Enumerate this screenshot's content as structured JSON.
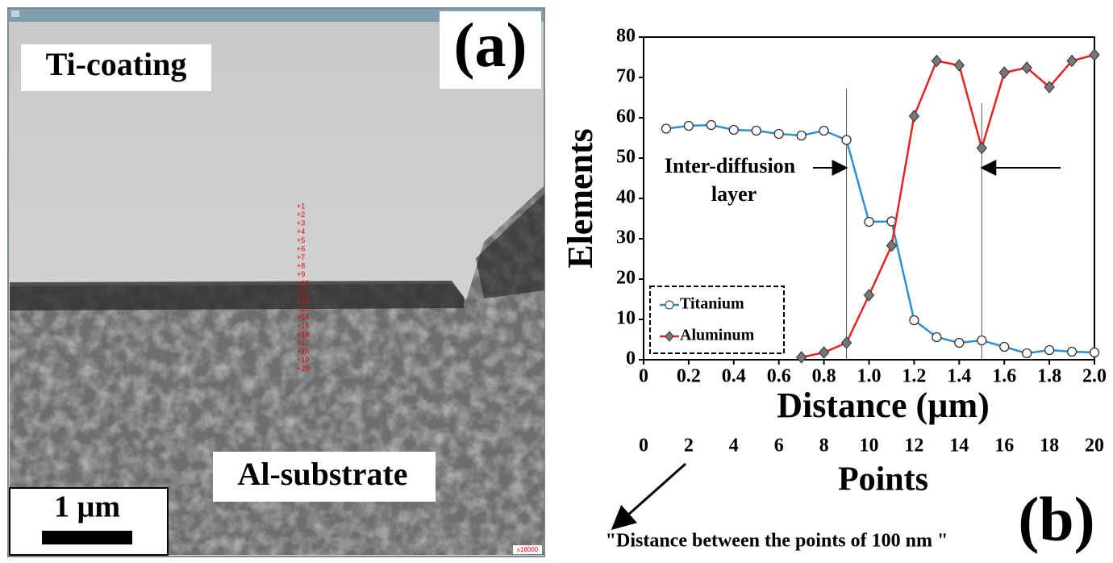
{
  "panel_a": {
    "label": "(a)",
    "top_text": "Ti-coating",
    "bottom_text": "Al-substrate",
    "scale_bar": "1 µm",
    "magnification": "x18000",
    "points": [
      "+1",
      "+2",
      "+3",
      "+4",
      "+5",
      "+6",
      "+7",
      "+8",
      "+9",
      "+10",
      "+11",
      "+12",
      "+13",
      "+14",
      "+15",
      "+16",
      "+17",
      "+18",
      "+19",
      "+20"
    ]
  },
  "chart_data": {
    "type": "line",
    "label": "(b)",
    "xlabel": "Distance (µm)",
    "ylabel": "Elements",
    "x": [
      0.1,
      0.2,
      0.3,
      0.4,
      0.5,
      0.6,
      0.7,
      0.8,
      0.9,
      1.0,
      1.1,
      1.2,
      1.3,
      1.4,
      1.5,
      1.6,
      1.7,
      1.8,
      1.9,
      2.0
    ],
    "series": [
      {
        "name": "Titanium",
        "color": "#2f8fcf",
        "marker": "circle",
        "values": [
          57.3,
          58,
          58.2,
          57,
          56.8,
          56,
          55.6,
          56.8,
          54.5,
          34.2,
          34.3,
          9.8,
          5.6,
          4.2,
          4.8,
          3.2,
          1.6,
          2.4,
          2.0,
          1.8
        ]
      },
      {
        "name": "Aluminum",
        "color": "#e8231f",
        "marker": "diamond",
        "values": [
          null,
          null,
          null,
          null,
          null,
          null,
          0.6,
          1.8,
          4.2,
          16,
          28.3,
          60.4,
          74.1,
          73,
          52.5,
          71.2,
          72.4,
          67.6,
          74.1,
          75.6
        ]
      }
    ],
    "xlim": [
      0,
      2
    ],
    "ylim": [
      0,
      80
    ],
    "xticks": [
      0,
      0.2,
      0.4,
      0.6,
      0.8,
      {
        "value": 1,
        "label": "1.0"
      },
      1.2,
      1.4,
      1.6,
      1.8,
      {
        "value": 2,
        "label": "2.0"
      }
    ],
    "yticks": [
      0,
      10,
      20,
      30,
      40,
      50,
      60,
      70,
      80
    ],
    "x2label": "Points",
    "x2lim": [
      0,
      20
    ],
    "x2ticks": [
      0,
      2,
      4,
      6,
      8,
      10,
      12,
      14,
      16,
      18,
      20
    ],
    "vlines": [
      0.9,
      1.5
    ],
    "annotation": [
      "Inter-diffusion",
      "layer"
    ],
    "note": "\"Distance between the points of 100 nm \""
  }
}
